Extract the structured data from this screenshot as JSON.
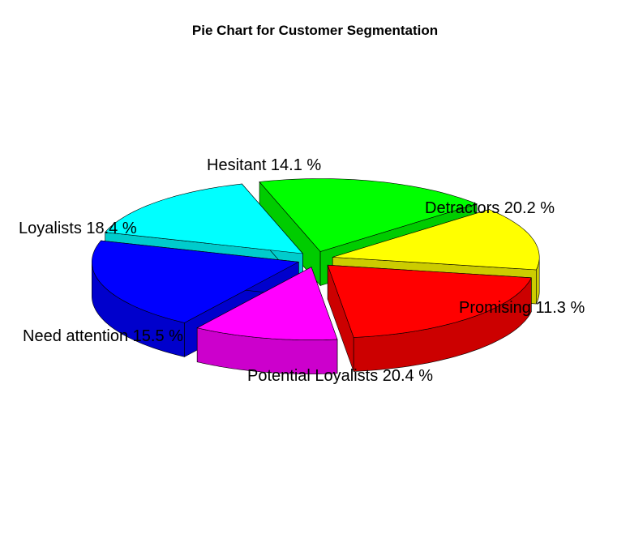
{
  "chart_data": {
    "type": "pie",
    "title": "Pie Chart for Customer Segmentation",
    "slices": [
      {
        "label": "Detractors",
        "percent": 20.2,
        "text": "Detractors   20.2 %",
        "color": "#ff0000"
      },
      {
        "label": "Promising",
        "percent": 11.3,
        "text": "Promising   11.3 %",
        "color": "#ff00ff"
      },
      {
        "label": "Potential Loyalists",
        "percent": 20.4,
        "text": "Potential Loyalists   20.4 %",
        "color": "#0000ff"
      },
      {
        "label": "Need attention",
        "percent": 15.5,
        "text": "Need attention   15.5 %",
        "color": "#00ffff"
      },
      {
        "label": "Loyalists",
        "percent": 18.4,
        "text": "Loyalists   18.4 %",
        "color": "#00ff00"
      },
      {
        "label": "Hesitant",
        "percent": 14.1,
        "text": "Hesitant   14.1 %",
        "color": "#ffff00"
      }
    ]
  }
}
